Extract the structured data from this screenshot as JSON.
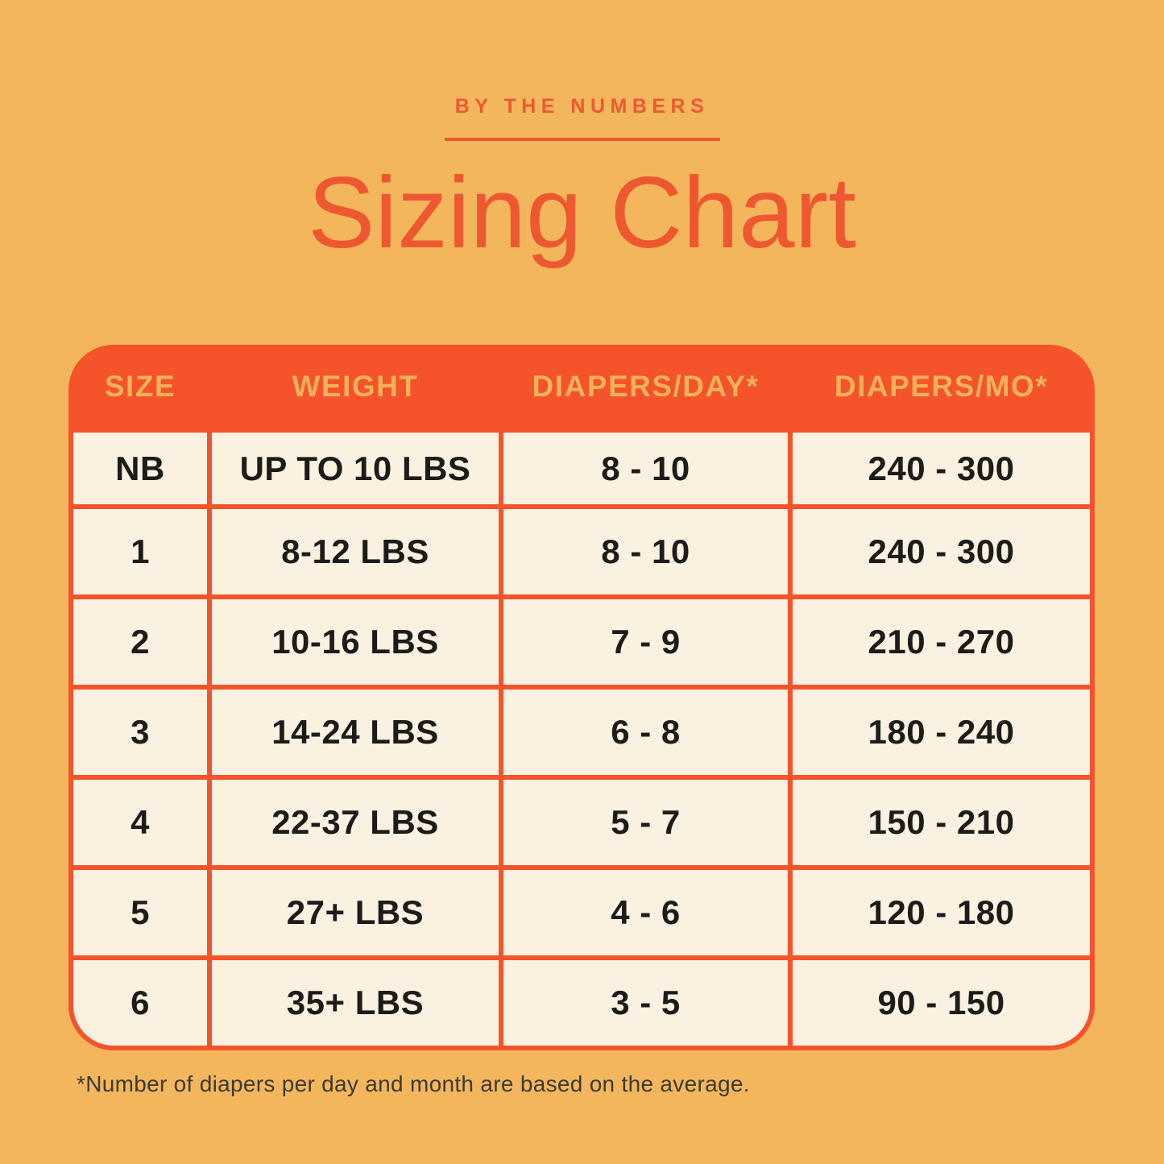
{
  "colors": {
    "background": "#F4B65C",
    "accent_orange": "#EE5830",
    "table_orange": "#F5532B",
    "cell_cream": "#FAF1E0",
    "header_text_gold": "#F3B159",
    "cell_text": "#1D1C1A",
    "footnote_text": "#3C3A30"
  },
  "header": {
    "eyebrow": "BY THE NUMBERS",
    "title": "Sizing Chart"
  },
  "table": {
    "columns": [
      "SIZE",
      "WEIGHT",
      "DIAPERS/DAY*",
      "DIAPERS/MO*"
    ],
    "rows": [
      [
        "NB",
        "UP TO 10 LBS",
        "8 - 10",
        "240 - 300"
      ],
      [
        "1",
        "8-12 LBS",
        "8 - 10",
        "240 - 300"
      ],
      [
        "2",
        "10-16 LBS",
        "7 - 9",
        "210 - 270"
      ],
      [
        "3",
        "14-24 LBS",
        "6 - 8",
        "180 - 240"
      ],
      [
        "4",
        "22-37 LBS",
        "5 - 7",
        "150 - 210"
      ],
      [
        "5",
        "27+ LBS",
        "4 - 6",
        "120 - 180"
      ],
      [
        "6",
        "35+ LBS",
        "3 - 5",
        "90 - 150"
      ]
    ]
  },
  "footnote": "*Number of diapers per day and month are based on the average.",
  "chart_data": {
    "type": "table",
    "title": "Sizing Chart",
    "subtitle": "BY THE NUMBERS",
    "columns": [
      "SIZE",
      "WEIGHT",
      "DIAPERS/DAY*",
      "DIAPERS/MO*"
    ],
    "rows": [
      {
        "size": "NB",
        "weight": "UP TO 10 LBS",
        "diapers_per_day": [
          8,
          10
        ],
        "diapers_per_month": [
          240,
          300
        ]
      },
      {
        "size": "1",
        "weight": "8-12 LBS",
        "diapers_per_day": [
          8,
          10
        ],
        "diapers_per_month": [
          240,
          300
        ]
      },
      {
        "size": "2",
        "weight": "10-16 LBS",
        "diapers_per_day": [
          7,
          9
        ],
        "diapers_per_month": [
          210,
          270
        ]
      },
      {
        "size": "3",
        "weight": "14-24 LBS",
        "diapers_per_day": [
          6,
          8
        ],
        "diapers_per_month": [
          180,
          240
        ]
      },
      {
        "size": "4",
        "weight": "22-37 LBS",
        "diapers_per_day": [
          5,
          7
        ],
        "diapers_per_month": [
          150,
          210
        ]
      },
      {
        "size": "5",
        "weight": "27+ LBS",
        "diapers_per_day": [
          4,
          6
        ],
        "diapers_per_month": [
          120,
          180
        ]
      },
      {
        "size": "6",
        "weight": "35+ LBS",
        "diapers_per_day": [
          3,
          5
        ],
        "diapers_per_month": [
          90,
          150
        ]
      }
    ],
    "footnote": "*Number of diapers per day and month are based on the average."
  }
}
